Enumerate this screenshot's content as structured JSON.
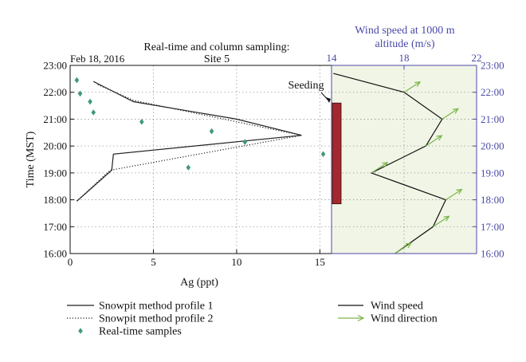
{
  "chart_data": [
    {
      "type": "line",
      "title": "Real-time and column sampling:",
      "subtitle": "Site 5",
      "date_label": "Feb 18, 2016",
      "xlabel": "Ag (ppt)",
      "ylabel": "Time (MST)",
      "xlim": [
        0,
        15.7
      ],
      "ylim": [
        16,
        23
      ],
      "x_ticks": [
        "0",
        "5",
        "10",
        "15"
      ],
      "x_tick_values": [
        0,
        5,
        10,
        15
      ],
      "y_ticks": [
        "16:00",
        "17:00",
        "18:00",
        "19:00",
        "20:00",
        "21:00",
        "22:00",
        "23:00"
      ],
      "y_tick_values": [
        16,
        17,
        18,
        19,
        20,
        21,
        22,
        23
      ],
      "grid": true,
      "series": [
        {
          "name": "Snowpit method profile 1",
          "style": "solid",
          "color": "#222222",
          "points": [
            [
              0.4,
              17.95
            ],
            [
              2.5,
              19.1
            ],
            [
              2.6,
              19.7
            ],
            [
              13.9,
              20.4
            ],
            [
              10.0,
              21.0
            ],
            [
              3.8,
              21.65
            ],
            [
              1.4,
              22.4
            ]
          ]
        },
        {
          "name": "Snowpit method profile 2",
          "style": "dotted",
          "color": "#222222",
          "points": [
            [
              0.4,
              17.95
            ],
            [
              2.4,
              19.1
            ],
            [
              13.9,
              20.4
            ],
            [
              3.8,
              21.7
            ],
            [
              1.6,
              22.3
            ]
          ]
        },
        {
          "name": "Real-time samples",
          "style": "marker",
          "color": "#3f9a76",
          "points": [
            [
              0.4,
              22.45
            ],
            [
              0.6,
              21.95
            ],
            [
              1.2,
              21.65
            ],
            [
              1.4,
              21.25
            ],
            [
              4.3,
              20.9
            ],
            [
              8.5,
              20.55
            ],
            [
              10.5,
              20.15
            ],
            [
              15.2,
              19.7
            ],
            [
              7.1,
              19.2
            ]
          ]
        }
      ],
      "annotation": "Seeding",
      "seeding_interval": [
        17.85,
        21.6
      ],
      "colors": {
        "seeding_bar": "#a3282e"
      }
    },
    {
      "type": "line",
      "title": "Wind speed at 1000 m",
      "subtitle": "altitude (m/s)",
      "xlim": [
        14,
        22
      ],
      "ylim": [
        16,
        23
      ],
      "x_ticks": [
        "14",
        "18",
        "22"
      ],
      "x_tick_values": [
        14,
        18,
        22
      ],
      "y_ticks": [
        "16:00",
        "17:00",
        "18:00",
        "19:00",
        "20:00",
        "21:00",
        "22:00",
        "23:00"
      ],
      "y_tick_values": [
        16,
        17,
        18,
        19,
        20,
        21,
        22,
        23
      ],
      "grid": true,
      "series": [
        {
          "name": "Wind speed",
          "style": "solid",
          "color": "#111111",
          "points": [
            [
              17.5,
              16
            ],
            [
              19.6,
              17
            ],
            [
              20.3,
              18
            ],
            [
              16.2,
              19
            ],
            [
              19.2,
              20
            ],
            [
              20.1,
              21
            ],
            [
              18.0,
              22
            ],
            [
              14.1,
              22.7
            ]
          ]
        },
        {
          "name": "Wind direction",
          "style": "arrow",
          "color": "#7ab648",
          "points": [
            [
              17.5,
              16
            ],
            [
              19.6,
              17
            ],
            [
              20.3,
              18
            ],
            [
              16.2,
              19
            ],
            [
              19.2,
              20
            ],
            [
              20.1,
              21
            ],
            [
              18.0,
              22
            ]
          ]
        }
      ],
      "colors": {
        "panel_bg": "#f1f5e6",
        "axis": "#4a4aa8"
      }
    }
  ]
}
